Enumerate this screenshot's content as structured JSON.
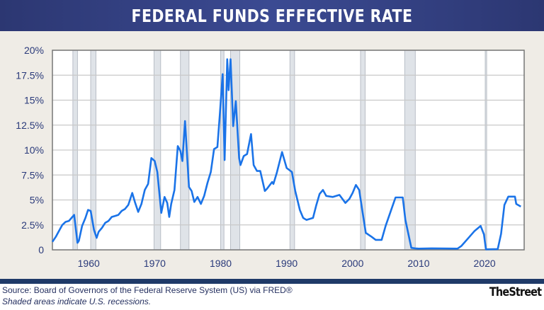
{
  "title": "FEDERAL FUNDS EFFECTIVE RATE",
  "footer": {
    "source": "Source: Board of Governors of the Federal Reserve System (US) via FRED®",
    "note": "Shaded areas indicate U.S. recessions.",
    "logo": "TheStreet"
  },
  "colors": {
    "line": "#1a73e8",
    "recession": "#dfe3e8",
    "header": "#2f3b7d"
  },
  "chart_data": {
    "type": "line",
    "title": "FEDERAL FUNDS EFFECTIVE RATE",
    "xlim": [
      1954.5,
      2026
    ],
    "ylim": [
      0,
      20
    ],
    "grid": true,
    "x_ticks": [
      1960,
      1970,
      1980,
      1990,
      2000,
      2010,
      2020
    ],
    "x_tick_labels": [
      "1960",
      "1970",
      "1980",
      "1990",
      "2000",
      "2010",
      "2020"
    ],
    "y_ticks": [
      0,
      2.5,
      5,
      7.5,
      10,
      12.5,
      15,
      17.5,
      20
    ],
    "y_tick_labels": [
      "0",
      "2.5%",
      "5%",
      "7.5%",
      "10%",
      "12.5%",
      "15%",
      "17.5%",
      "20%"
    ],
    "recessions": [
      [
        1957.6,
        1958.3
      ],
      [
        1960.3,
        1961.1
      ],
      [
        1969.9,
        1970.9
      ],
      [
        1973.9,
        1975.2
      ],
      [
        1980.0,
        1980.5
      ],
      [
        1981.5,
        1982.9
      ],
      [
        1990.5,
        1991.2
      ],
      [
        2001.2,
        2001.9
      ],
      [
        2007.9,
        2009.5
      ],
      [
        2020.1,
        2020.3
      ]
    ],
    "series": [
      {
        "x": [
          1954.5,
          1955,
          1955.5,
          1956,
          1956.5,
          1957,
          1957.8,
          1958.3,
          1958.5,
          1959,
          1959.5,
          1959.9,
          1960.3,
          1960.8,
          1961.2,
          1961.5,
          1962,
          1962.5,
          1963,
          1963.5,
          1964,
          1964.5,
          1965,
          1965.5,
          1966,
          1966.6,
          1967,
          1967.5,
          1968,
          1968.5,
          1969,
          1969.5,
          1970,
          1970.4,
          1971,
          1971.5,
          1971.9,
          1972.2,
          1972.5,
          1973,
          1973.5,
          1973.9,
          1974.2,
          1974.6,
          1975.2,
          1975.6,
          1976,
          1976.5,
          1977,
          1977.5,
          1978,
          1978.5,
          1979,
          1979.5,
          1979.9,
          1980.3,
          1980.6,
          1981,
          1981.2,
          1981.5,
          1981.9,
          1982.3,
          1982.8,
          1983,
          1983.5,
          1984,
          1984.6,
          1985,
          1985.5,
          1986,
          1986.7,
          1987,
          1987.8,
          1988,
          1988.5,
          1989.3,
          1990,
          1990.8,
          1991.3,
          1992,
          1992.5,
          1993,
          1994,
          1994.5,
          1995,
          1995.5,
          1996,
          1997,
          1998,
          1998.9,
          1999.5,
          2000,
          2000.5,
          2001,
          2001.5,
          2002,
          2002.9,
          2003.5,
          2004.4,
          2005,
          2006,
          2006.5,
          2007.6,
          2008,
          2008.9,
          2009.5,
          2010,
          2012,
          2015.9,
          2016.5,
          2017.5,
          2018.5,
          2019.4,
          2019.9,
          2020.2,
          2022,
          2022.5,
          2023,
          2023.6,
          2024.6,
          2024.8,
          2025.5
        ],
        "values": [
          0.8,
          1.3,
          1.9,
          2.5,
          2.8,
          2.9,
          3.5,
          0.7,
          0.9,
          2.4,
          3.2,
          4.0,
          3.9,
          2.0,
          1.2,
          1.8,
          2.2,
          2.7,
          2.9,
          3.3,
          3.4,
          3.5,
          3.9,
          4.1,
          4.5,
          5.7,
          4.8,
          3.8,
          4.6,
          6.0,
          6.6,
          9.2,
          8.9,
          7.8,
          3.7,
          5.3,
          4.7,
          3.3,
          4.6,
          6.0,
          10.4,
          9.9,
          8.9,
          12.9,
          6.3,
          5.9,
          4.8,
          5.3,
          4.6,
          5.4,
          6.7,
          7.8,
          10.1,
          10.3,
          13.8,
          17.6,
          9.0,
          19.1,
          16.0,
          19.1,
          12.4,
          14.9,
          9.2,
          8.5,
          9.4,
          9.6,
          11.6,
          8.5,
          7.9,
          7.9,
          5.9,
          6.1,
          6.8,
          6.6,
          7.7,
          9.8,
          8.2,
          7.8,
          5.9,
          4.0,
          3.2,
          3.0,
          3.2,
          4.5,
          5.6,
          6.0,
          5.4,
          5.3,
          5.5,
          4.7,
          5.1,
          5.7,
          6.5,
          6.0,
          3.8,
          1.7,
          1.3,
          1.0,
          1.0,
          2.4,
          4.3,
          5.25,
          5.25,
          3.0,
          0.2,
          0.15,
          0.12,
          0.15,
          0.12,
          0.4,
          1.15,
          1.9,
          2.4,
          1.55,
          0.05,
          0.08,
          1.6,
          4.5,
          5.33,
          5.33,
          4.6,
          4.33
        ]
      }
    ]
  }
}
